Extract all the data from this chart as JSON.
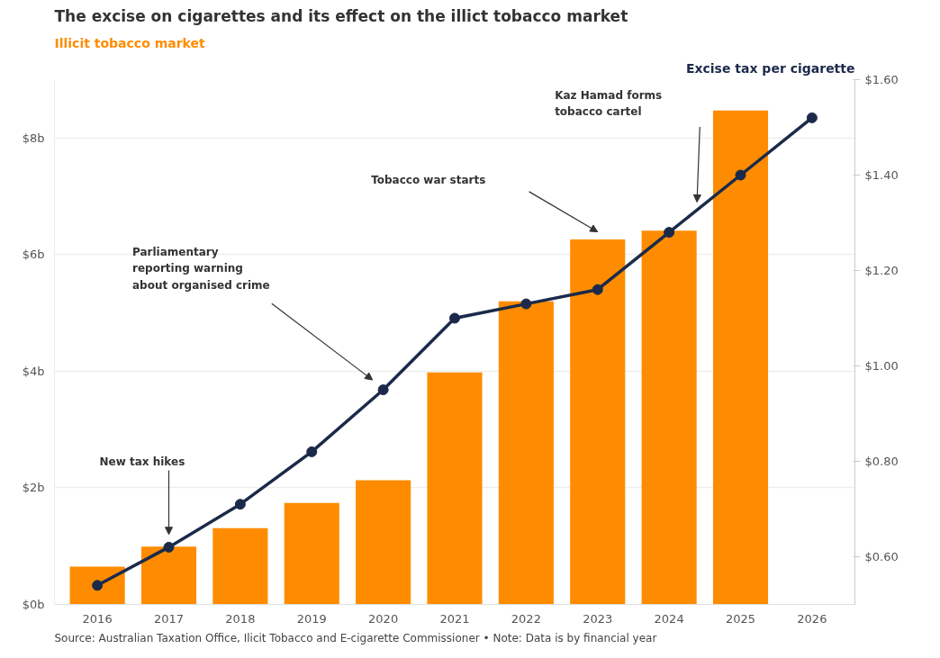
{
  "chart_data": {
    "type": "bar",
    "title": "The excise on cigarettes and its effect on the illict tobacco market",
    "ylabel": "Illicit tobacco market",
    "y2label": "Excise tax per cigarette",
    "categories": [
      "2016",
      "2017",
      "2018",
      "2019",
      "2020",
      "2021",
      "2022",
      "2023",
      "2024",
      "2025",
      "2026"
    ],
    "series": [
      {
        "color": "#ff8c00",
        "values": [
          0.65,
          0.99,
          1.31,
          1.74,
          2.13,
          3.98,
          5.2,
          6.26,
          6.41,
          8.47,
          null
        ]
      },
      {
        "type": "line",
        "axis": "y2",
        "color": "#1b2a4a",
        "marker": "circle",
        "values": [
          0.54,
          0.62,
          0.71,
          0.82,
          0.95,
          1.1,
          1.13,
          1.16,
          1.28,
          1.4,
          1.52
        ]
      }
    ],
    "ylim": [
      0,
      9
    ],
    "yticks": [
      {
        "value": 0,
        "label": "$0b"
      },
      {
        "value": 2,
        "label": "$2b"
      },
      {
        "value": 4,
        "label": "$4b"
      },
      {
        "value": 6,
        "label": "$6b"
      },
      {
        "value": 8,
        "label": "$8b"
      }
    ],
    "y2lim": [
      0.5,
      1.6
    ],
    "y2ticks": [
      {
        "value": 0.6,
        "label": "$0.60"
      },
      {
        "value": 0.8,
        "label": "$0.80"
      },
      {
        "value": 1.0,
        "label": "$1.00"
      },
      {
        "value": 1.2,
        "label": "$1.20"
      },
      {
        "value": 1.4,
        "label": "$1.40"
      },
      {
        "value": 1.6,
        "label": "$1.60"
      }
    ],
    "grid": "y",
    "annotations": [
      "New tax hikes",
      "Parliamentary reporting warning about organised crime",
      "Tobacco war starts",
      "Kaz Hamad forms tobacco cartel",
      "Source: Australian Taxation Office, Ilicit Tobacco and E-cigarette Commissioner • Note: Data is by financial year"
    ]
  }
}
